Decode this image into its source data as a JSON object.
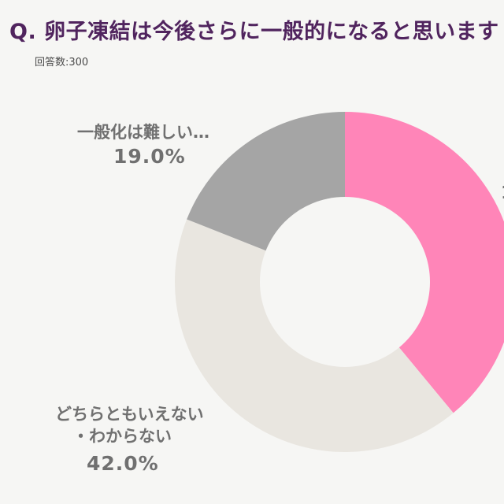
{
  "header": {
    "title": "Q. 卵子凍結は今後さらに一般的になると思います",
    "sample": "回答数:300"
  },
  "chart_data": {
    "type": "pie",
    "donut": true,
    "slices": [
      {
        "name": "",
        "value": 39.0,
        "color": "#ff85b8"
      },
      {
        "name": "どちらともいえない・わからない",
        "name_lines": [
          "どちらともいえない",
          "・わからない"
        ],
        "label": "42.0%",
        "value": 42.0,
        "color": "#e9e6e0"
      },
      {
        "name": "一般化は難しい…",
        "label": "19.0%",
        "value": 19.0,
        "color": "#a5a5a5"
      }
    ]
  }
}
